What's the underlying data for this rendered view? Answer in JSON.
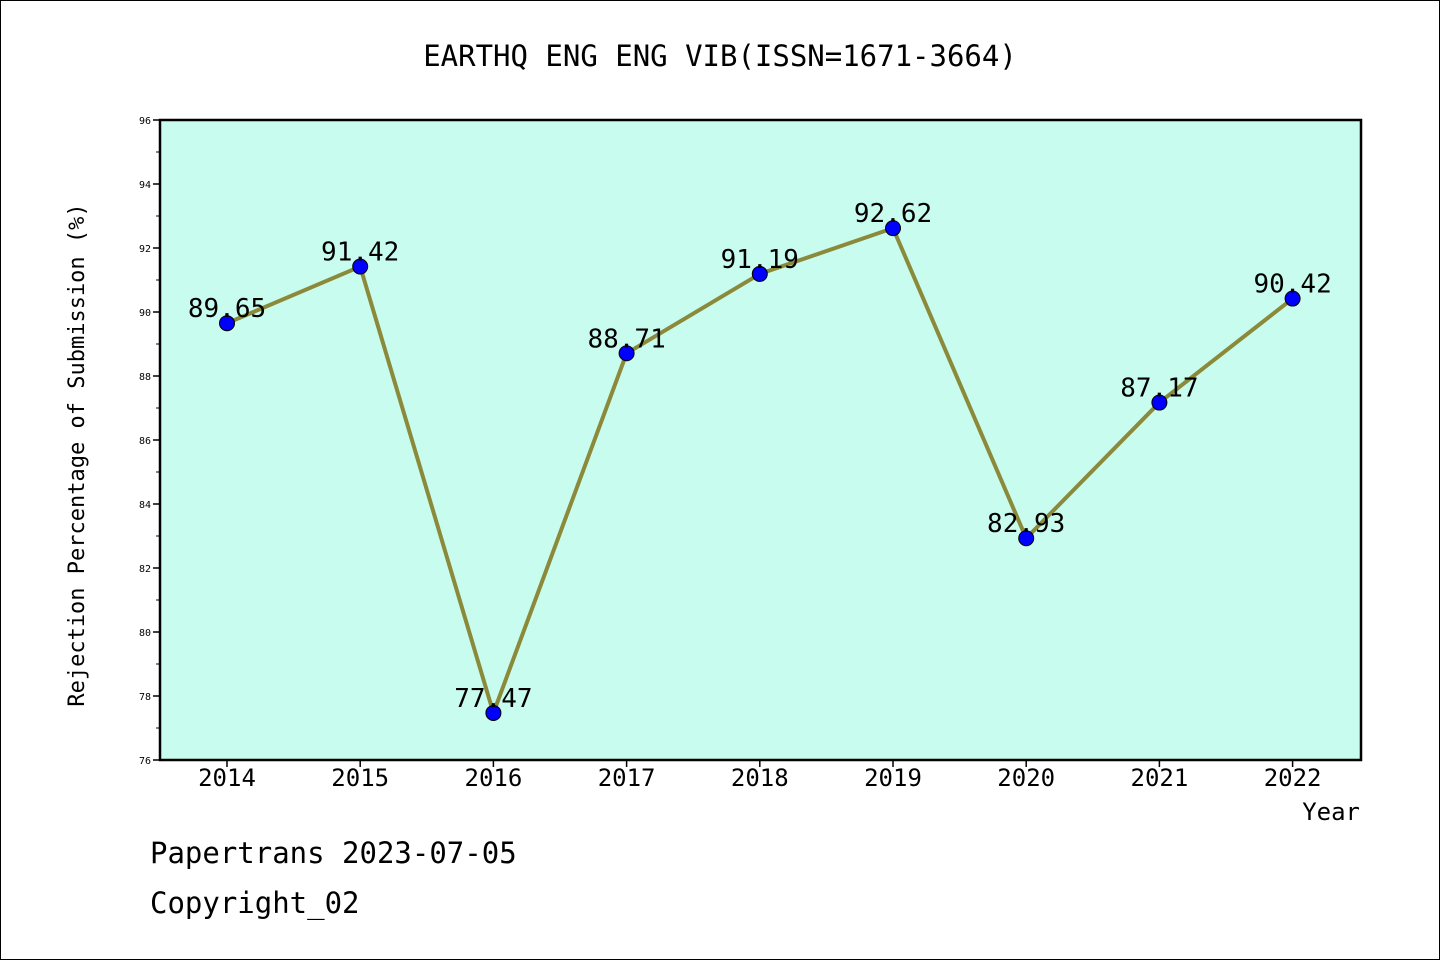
{
  "chart_data": {
    "type": "line",
    "title": "EARTHQ ENG ENG VIB(ISSN=1671-3664)",
    "xlabel": "Year",
    "ylabel": "Rejection Percentage of Submission (%)",
    "categories": [
      "2014",
      "2015",
      "2016",
      "2017",
      "2018",
      "2019",
      "2020",
      "2021",
      "2022"
    ],
    "values": [
      89.65,
      91.42,
      77.47,
      88.71,
      91.19,
      92.62,
      82.93,
      87.17,
      90.42
    ],
    "data_labels": [
      "89.65",
      "91.42",
      "77.47",
      "88.71",
      "91.19",
      "92.62",
      "82.93",
      "87.17",
      "90.42"
    ],
    "ylim": [
      76,
      96
    ],
    "yticks": [
      76,
      78,
      80,
      82,
      84,
      86,
      88,
      90,
      92,
      94,
      96
    ],
    "grid": false,
    "colors": {
      "plot_background": "#c8fcee",
      "line": "#8b8a3a",
      "marker": "#0000ff"
    }
  },
  "footer": {
    "line1": "Papertrans 2023-07-05",
    "line2": "Copyright_02"
  }
}
